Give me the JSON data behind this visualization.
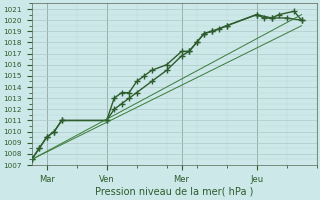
{
  "xlabel": "Pression niveau de la mer( hPa )",
  "bg_color": "#cce8e8",
  "grid_color_major": "#b0c8c8",
  "grid_color_minor": "#c0d8d8",
  "vline_color": "#556655",
  "line_dark": "#2d5c2d",
  "line_medium": "#3a7a3a",
  "ylim": [
    1007,
    1021.5
  ],
  "xlim": [
    0.0,
    9.5
  ],
  "yticks": [
    1007,
    1008,
    1009,
    1010,
    1011,
    1012,
    1013,
    1014,
    1015,
    1016,
    1017,
    1018,
    1019,
    1020,
    1021
  ],
  "xtick_labels": [
    "Mar",
    "Ven",
    "Mer",
    "Jeu"
  ],
  "xtick_positions": [
    0.5,
    2.5,
    5.0,
    7.5
  ],
  "vline_positions": [
    0.5,
    2.5,
    5.0,
    7.5
  ],
  "series": [
    {
      "comment": "upper marked line - rises steeply with bump near Ven then continues",
      "x": [
        0.0,
        0.25,
        0.5,
        0.75,
        1.0,
        2.5,
        2.75,
        3.0,
        3.25,
        3.5,
        3.75,
        4.0,
        4.5,
        5.0,
        5.25,
        5.5,
        5.75,
        6.0,
        6.25,
        6.5,
        7.5,
        7.75,
        8.0,
        8.25,
        8.75,
        9.0
      ],
      "y": [
        1007.5,
        1008.5,
        1009.5,
        1010,
        1011,
        1011,
        1013,
        1013.5,
        1013.5,
        1014.5,
        1015,
        1015.5,
        1016,
        1017.2,
        1017.2,
        1018,
        1018.8,
        1019,
        1019.2,
        1019.5,
        1020.5,
        1020.2,
        1020.2,
        1020.5,
        1020.8,
        1020
      ],
      "color": "#2d5c2d",
      "lw": 1.0,
      "marker": "+",
      "ms": 4,
      "mew": 1.0,
      "ls": "-"
    },
    {
      "comment": "lower marked line - same start, diverges near Ven with lower bump",
      "x": [
        0.0,
        0.25,
        0.5,
        0.75,
        1.0,
        2.5,
        2.75,
        3.0,
        3.25,
        3.5,
        4.0,
        4.5,
        5.0,
        5.25,
        5.5,
        5.75,
        6.0,
        6.5,
        7.5,
        8.0,
        8.5,
        9.0
      ],
      "y": [
        1007.5,
        1008.5,
        1009.5,
        1010,
        1011,
        1011,
        1012,
        1012.5,
        1013,
        1013.5,
        1014.5,
        1015.5,
        1016.8,
        1017.2,
        1018,
        1018.8,
        1019,
        1019.5,
        1020.5,
        1020.2,
        1020.2,
        1020
      ],
      "color": "#2d5c2d",
      "lw": 1.0,
      "marker": "+",
      "ms": 4,
      "mew": 1.0,
      "ls": "-"
    },
    {
      "comment": "upper thin diagonal from start to end",
      "x": [
        0.0,
        9.0
      ],
      "y": [
        1007.5,
        1020.5
      ],
      "color": "#3a7a3a",
      "lw": 0.7,
      "marker": null,
      "ms": 0,
      "mew": 0,
      "ls": "-"
    },
    {
      "comment": "lower thin diagonal from start to end - slightly lower at right",
      "x": [
        0.0,
        9.0
      ],
      "y": [
        1007.5,
        1019.5
      ],
      "color": "#3a7a3a",
      "lw": 0.7,
      "marker": null,
      "ms": 0,
      "mew": 0,
      "ls": "-"
    }
  ]
}
